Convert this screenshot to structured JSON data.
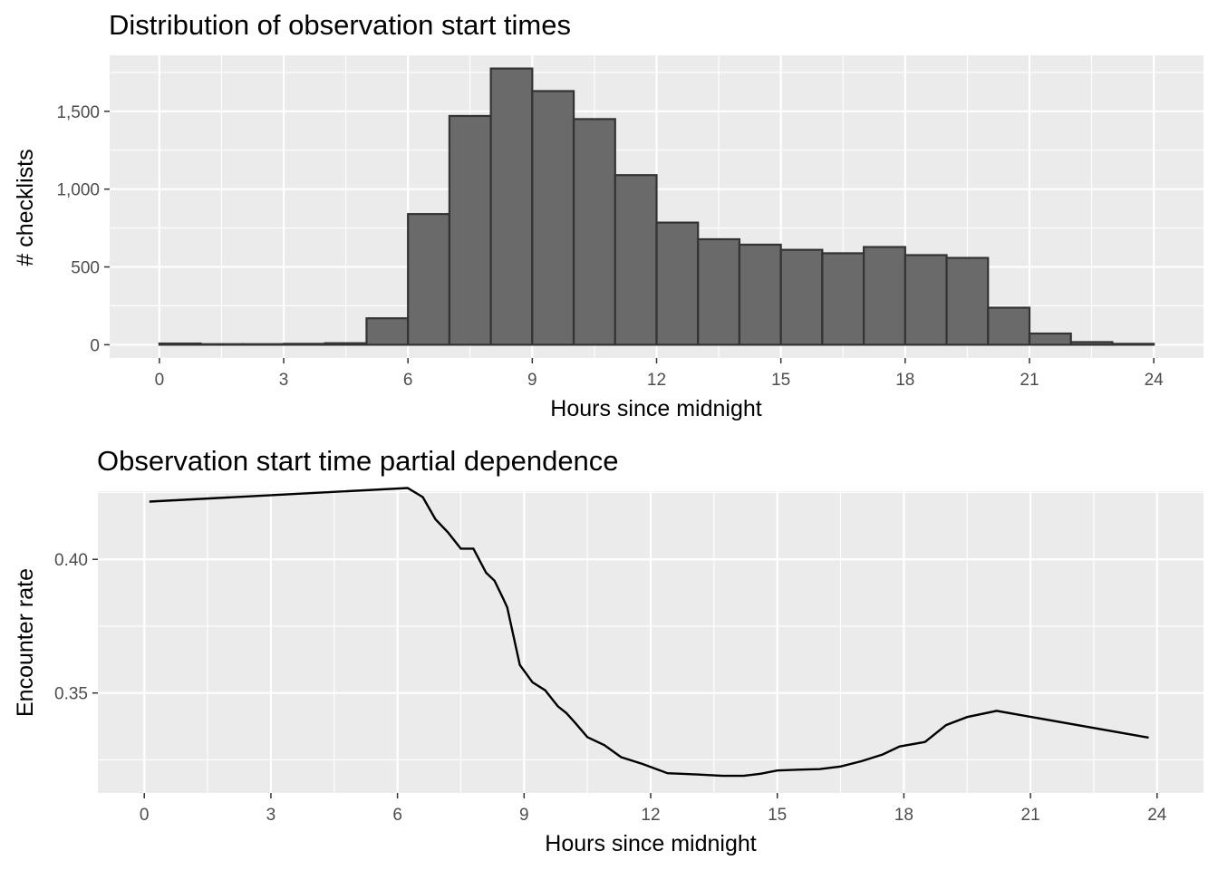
{
  "chart_data": [
    {
      "type": "bar",
      "title": "Distribution of observation start times",
      "xlabel": "Hours since midnight",
      "ylabel": "# checklists",
      "xlim": [
        -1.2,
        25.2
      ],
      "ylim": [
        -85,
        1860
      ],
      "x_ticks": [
        0,
        3,
        6,
        9,
        12,
        15,
        18,
        21,
        24
      ],
      "x_tick_labels": [
        "0",
        "3",
        "6",
        "9",
        "12",
        "15",
        "18",
        "21",
        "24"
      ],
      "y_ticks": [
        0,
        500,
        1000,
        1500
      ],
      "y_tick_labels": [
        "0",
        "500",
        "1,000",
        "1,500"
      ],
      "grid": true,
      "bin_width": 1,
      "bins": [
        {
          "start": 0,
          "end": 1,
          "value": 8
        },
        {
          "start": 1,
          "end": 2,
          "value": 4
        },
        {
          "start": 2,
          "end": 3,
          "value": 4
        },
        {
          "start": 3,
          "end": 4,
          "value": 6
        },
        {
          "start": 4,
          "end": 5,
          "value": 10
        },
        {
          "start": 5,
          "end": 6,
          "value": 170
        },
        {
          "start": 6,
          "end": 7,
          "value": 840
        },
        {
          "start": 7,
          "end": 8,
          "value": 1470
        },
        {
          "start": 8,
          "end": 9,
          "value": 1775
        },
        {
          "start": 9,
          "end": 10,
          "value": 1630
        },
        {
          "start": 10,
          "end": 11,
          "value": 1450
        },
        {
          "start": 11,
          "end": 12,
          "value": 1090
        },
        {
          "start": 12,
          "end": 13,
          "value": 785
        },
        {
          "start": 13,
          "end": 14,
          "value": 678
        },
        {
          "start": 14,
          "end": 15,
          "value": 643
        },
        {
          "start": 15,
          "end": 16,
          "value": 610
        },
        {
          "start": 16,
          "end": 17,
          "value": 588
        },
        {
          "start": 17,
          "end": 18,
          "value": 628
        },
        {
          "start": 18,
          "end": 19,
          "value": 576
        },
        {
          "start": 19,
          "end": 20,
          "value": 558
        },
        {
          "start": 20,
          "end": 21,
          "value": 238
        },
        {
          "start": 21,
          "end": 22,
          "value": 72
        },
        {
          "start": 22,
          "end": 23,
          "value": 17
        },
        {
          "start": 23,
          "end": 24,
          "value": 6
        }
      ]
    },
    {
      "type": "line",
      "title": "Observation start time partial dependence",
      "xlabel": "Hours since midnight",
      "ylabel": "Encounter rate",
      "xlim": [
        -1.1,
        25.1
      ],
      "ylim": [
        0.3126,
        0.4255
      ],
      "x_ticks": [
        0,
        3,
        6,
        9,
        12,
        15,
        18,
        21,
        24
      ],
      "x_tick_labels": [
        "0",
        "3",
        "6",
        "9",
        "12",
        "15",
        "18",
        "21",
        "24"
      ],
      "y_ticks": [
        0.35,
        0.4
      ],
      "y_tick_labels": [
        "0.35",
        "0.40"
      ],
      "y_minor_ticks": [
        0.325,
        0.375
      ],
      "grid": true,
      "series": [
        {
          "x": [
            0.12,
            6.24,
            6.6,
            6.9,
            7.2,
            7.5,
            7.8,
            8.1,
            8.3,
            8.5,
            8.6,
            8.9,
            9.2,
            9.5,
            9.8,
            10.0,
            10.2,
            10.5,
            10.9,
            11.3,
            11.8,
            12.4,
            13.1,
            13.7,
            14.2,
            14.6,
            15.0,
            15.5,
            16.0,
            16.5,
            17.0,
            17.5,
            17.9,
            18.5,
            19.0,
            19.5,
            20.2,
            23.8
          ],
          "y": [
            0.4216,
            0.4267,
            0.4233,
            0.415,
            0.41,
            0.404,
            0.404,
            0.395,
            0.392,
            0.3855,
            0.382,
            0.3605,
            0.354,
            0.351,
            0.345,
            0.3425,
            0.339,
            0.3335,
            0.3305,
            0.326,
            0.3235,
            0.32,
            0.3195,
            0.319,
            0.319,
            0.3198,
            0.321,
            0.3213,
            0.3215,
            0.3225,
            0.3245,
            0.327,
            0.33,
            0.3317,
            0.338,
            0.341,
            0.3433,
            0.3333
          ]
        }
      ]
    }
  ]
}
